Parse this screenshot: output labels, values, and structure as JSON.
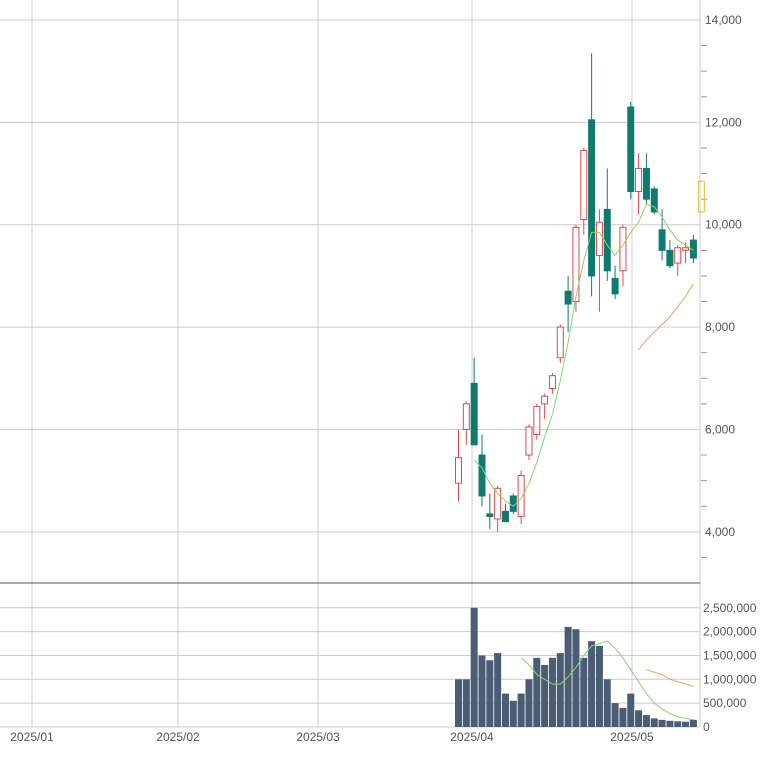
{
  "chart_data": {
    "type": "candlestick",
    "price_axis": {
      "range": [
        3000,
        14000
      ],
      "ticks": [
        4000,
        6000,
        8000,
        10000,
        12000,
        14000
      ],
      "tick_labels": [
        "4,000",
        "6,000",
        "8,000",
        "10,000",
        "12,000",
        "14,000"
      ]
    },
    "volume_axis": {
      "range": [
        0,
        2600000
      ],
      "ticks": [
        0,
        500000,
        1000000,
        1500000,
        2000000,
        2500000
      ],
      "tick_labels": [
        "0",
        "500,000",
        "1,000,000",
        "1,500,000",
        "2,000,000",
        "2,500,000"
      ]
    },
    "x_axis_labels": [
      "2025/01",
      "2025/02",
      "2025/03",
      "2025/04",
      "2025/05"
    ],
    "grid": true,
    "candles": [
      {
        "open": 4950,
        "high": 6000,
        "low": 4600,
        "close": 5450,
        "volume": 1000000
      },
      {
        "open": 6000,
        "high": 6550,
        "low": 5700,
        "close": 6500,
        "volume": 1000000
      },
      {
        "open": 6900,
        "high": 7400,
        "low": 5700,
        "close": 5700,
        "volume": 2500000
      },
      {
        "open": 5500,
        "high": 5900,
        "low": 4500,
        "close": 4700,
        "volume": 1500000
      },
      {
        "open": 4350,
        "high": 4750,
        "low": 4050,
        "close": 4300,
        "volume": 1400000
      },
      {
        "open": 4250,
        "high": 4900,
        "low": 4000,
        "close": 4850,
        "volume": 1550000
      },
      {
        "open": 4400,
        "high": 4550,
        "low": 4200,
        "close": 4200,
        "volume": 700000
      },
      {
        "open": 4700,
        "high": 4750,
        "low": 4350,
        "close": 4400,
        "volume": 550000
      },
      {
        "open": 4300,
        "high": 5200,
        "low": 4150,
        "close": 5100,
        "volume": 700000
      },
      {
        "open": 5500,
        "high": 6100,
        "low": 5400,
        "close": 6050,
        "volume": 1000000
      },
      {
        "open": 5900,
        "high": 6500,
        "low": 5800,
        "close": 6450,
        "volume": 1450000
      },
      {
        "open": 6500,
        "high": 6700,
        "low": 6200,
        "close": 6650,
        "volume": 1300000
      },
      {
        "open": 6800,
        "high": 7100,
        "low": 6700,
        "close": 7050,
        "volume": 1450000
      },
      {
        "open": 7400,
        "high": 8050,
        "low": 7300,
        "close": 8000,
        "volume": 1550000
      },
      {
        "open": 8700,
        "high": 9000,
        "low": 7900,
        "close": 8450,
        "volume": 2100000
      },
      {
        "open": 8500,
        "high": 10000,
        "low": 8300,
        "close": 9950,
        "volume": 2050000
      },
      {
        "open": 10100,
        "high": 11500,
        "low": 9800,
        "close": 11450,
        "volume": 1450000
      },
      {
        "open": 12050,
        "high": 13350,
        "low": 8600,
        "close": 9000,
        "volume": 1800000
      },
      {
        "open": 9400,
        "high": 10300,
        "low": 8300,
        "close": 10050,
        "volume": 1700000
      },
      {
        "open": 10300,
        "high": 11100,
        "low": 8900,
        "close": 9100,
        "volume": 1000000
      },
      {
        "open": 8950,
        "high": 9200,
        "low": 8550,
        "close": 8650,
        "volume": 500000
      },
      {
        "open": 9100,
        "high": 10000,
        "low": 8800,
        "close": 9950,
        "volume": 400000
      },
      {
        "open": 12300,
        "high": 12400,
        "low": 10500,
        "close": 10650,
        "volume": 700000
      },
      {
        "open": 10650,
        "high": 11400,
        "low": 10200,
        "close": 11100,
        "volume": 350000
      },
      {
        "open": 11100,
        "high": 11400,
        "low": 10400,
        "close": 10500,
        "volume": 250000
      },
      {
        "open": 10700,
        "high": 10750,
        "low": 10200,
        "close": 10250,
        "volume": 180000
      },
      {
        "open": 9900,
        "high": 10300,
        "low": 9300,
        "close": 9500,
        "volume": 150000
      },
      {
        "open": 9500,
        "high": 9700,
        "low": 9150,
        "close": 9200,
        "volume": 130000
      },
      {
        "open": 9250,
        "high": 9600,
        "low": 9000,
        "close": 9550,
        "volume": 120000
      },
      {
        "open": 9500,
        "high": 9650,
        "low": 9250,
        "close": 9550,
        "volume": 110000
      },
      {
        "open": 9700,
        "high": 9800,
        "low": 9250,
        "close": 9350,
        "volume": 150000
      }
    ],
    "price_ma_short": [
      5400,
      5250,
      4950,
      4750,
      4600,
      4500,
      4650,
      4950,
      5350,
      5850,
      6300,
      6950,
      7700,
      8600,
      9300,
      9850,
      9850,
      9600,
      9400,
      9600,
      9850,
      10050,
      10400,
      10350,
      10150,
      9900,
      9700,
      9600,
      9500
    ],
    "price_ma_long": [
      7550,
      7750,
      7900,
      8050,
      8200,
      8400,
      8600,
      8850
    ],
    "volume_ma_short": [
      1450000,
      1300000,
      1100000,
      1000000,
      900000,
      900000,
      1050000,
      1250000,
      1500000,
      1700000,
      1750000,
      1800000,
      1650000,
      1450000,
      1200000,
      950000,
      700000,
      500000,
      380000,
      280000,
      220000,
      180000,
      150000
    ],
    "volume_ma_long": [
      1200000,
      1150000,
      1100000,
      1000000,
      950000,
      900000,
      850000
    ],
    "latest_candle_outline": {
      "high": 10850,
      "low": 10250
    },
    "colors": {
      "up": "#e04a4a",
      "down": "#117a6e",
      "volume_bar": "#4a5d75",
      "ma_short": "#8ad46a",
      "ma_long": "#f0a050",
      "latest_outline": "#e0c020",
      "grid": "#cccccc",
      "divider": "#555555"
    }
  }
}
